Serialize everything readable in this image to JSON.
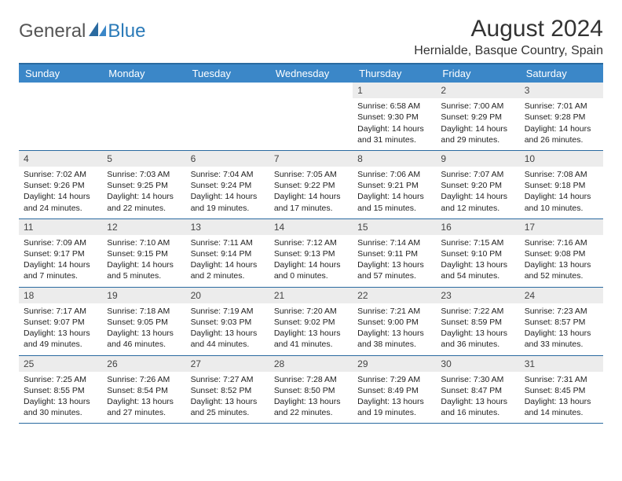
{
  "logo": {
    "text1": "General",
    "text2": "Blue"
  },
  "title": "August 2024",
  "subtitle": "Hernialde, Basque Country, Spain",
  "colors": {
    "header_bg": "#3b87c8",
    "header_text": "#ffffff",
    "border": "#2a6aa0",
    "daynum_bg": "#ececec",
    "logo_gray": "#555555",
    "logo_blue": "#2a7ab8"
  },
  "layout": {
    "columns": 7,
    "rows": 5,
    "cell_fontsize_pt": 8,
    "header_fontsize_pt": 10,
    "title_fontsize_pt": 22
  },
  "day_names": [
    "Sunday",
    "Monday",
    "Tuesday",
    "Wednesday",
    "Thursday",
    "Friday",
    "Saturday"
  ],
  "weeks": [
    [
      {
        "n": "",
        "empty": true
      },
      {
        "n": "",
        "empty": true
      },
      {
        "n": "",
        "empty": true
      },
      {
        "n": "",
        "empty": true
      },
      {
        "n": "1",
        "sr": "Sunrise: 6:58 AM",
        "ss": "Sunset: 9:30 PM",
        "d1": "Daylight: 14 hours",
        "d2": "and 31 minutes."
      },
      {
        "n": "2",
        "sr": "Sunrise: 7:00 AM",
        "ss": "Sunset: 9:29 PM",
        "d1": "Daylight: 14 hours",
        "d2": "and 29 minutes."
      },
      {
        "n": "3",
        "sr": "Sunrise: 7:01 AM",
        "ss": "Sunset: 9:28 PM",
        "d1": "Daylight: 14 hours",
        "d2": "and 26 minutes."
      }
    ],
    [
      {
        "n": "4",
        "sr": "Sunrise: 7:02 AM",
        "ss": "Sunset: 9:26 PM",
        "d1": "Daylight: 14 hours",
        "d2": "and 24 minutes."
      },
      {
        "n": "5",
        "sr": "Sunrise: 7:03 AM",
        "ss": "Sunset: 9:25 PM",
        "d1": "Daylight: 14 hours",
        "d2": "and 22 minutes."
      },
      {
        "n": "6",
        "sr": "Sunrise: 7:04 AM",
        "ss": "Sunset: 9:24 PM",
        "d1": "Daylight: 14 hours",
        "d2": "and 19 minutes."
      },
      {
        "n": "7",
        "sr": "Sunrise: 7:05 AM",
        "ss": "Sunset: 9:22 PM",
        "d1": "Daylight: 14 hours",
        "d2": "and 17 minutes."
      },
      {
        "n": "8",
        "sr": "Sunrise: 7:06 AM",
        "ss": "Sunset: 9:21 PM",
        "d1": "Daylight: 14 hours",
        "d2": "and 15 minutes."
      },
      {
        "n": "9",
        "sr": "Sunrise: 7:07 AM",
        "ss": "Sunset: 9:20 PM",
        "d1": "Daylight: 14 hours",
        "d2": "and 12 minutes."
      },
      {
        "n": "10",
        "sr": "Sunrise: 7:08 AM",
        "ss": "Sunset: 9:18 PM",
        "d1": "Daylight: 14 hours",
        "d2": "and 10 minutes."
      }
    ],
    [
      {
        "n": "11",
        "sr": "Sunrise: 7:09 AM",
        "ss": "Sunset: 9:17 PM",
        "d1": "Daylight: 14 hours",
        "d2": "and 7 minutes."
      },
      {
        "n": "12",
        "sr": "Sunrise: 7:10 AM",
        "ss": "Sunset: 9:15 PM",
        "d1": "Daylight: 14 hours",
        "d2": "and 5 minutes."
      },
      {
        "n": "13",
        "sr": "Sunrise: 7:11 AM",
        "ss": "Sunset: 9:14 PM",
        "d1": "Daylight: 14 hours",
        "d2": "and 2 minutes."
      },
      {
        "n": "14",
        "sr": "Sunrise: 7:12 AM",
        "ss": "Sunset: 9:13 PM",
        "d1": "Daylight: 14 hours",
        "d2": "and 0 minutes."
      },
      {
        "n": "15",
        "sr": "Sunrise: 7:14 AM",
        "ss": "Sunset: 9:11 PM",
        "d1": "Daylight: 13 hours",
        "d2": "and 57 minutes."
      },
      {
        "n": "16",
        "sr": "Sunrise: 7:15 AM",
        "ss": "Sunset: 9:10 PM",
        "d1": "Daylight: 13 hours",
        "d2": "and 54 minutes."
      },
      {
        "n": "17",
        "sr": "Sunrise: 7:16 AM",
        "ss": "Sunset: 9:08 PM",
        "d1": "Daylight: 13 hours",
        "d2": "and 52 minutes."
      }
    ],
    [
      {
        "n": "18",
        "sr": "Sunrise: 7:17 AM",
        "ss": "Sunset: 9:07 PM",
        "d1": "Daylight: 13 hours",
        "d2": "and 49 minutes."
      },
      {
        "n": "19",
        "sr": "Sunrise: 7:18 AM",
        "ss": "Sunset: 9:05 PM",
        "d1": "Daylight: 13 hours",
        "d2": "and 46 minutes."
      },
      {
        "n": "20",
        "sr": "Sunrise: 7:19 AM",
        "ss": "Sunset: 9:03 PM",
        "d1": "Daylight: 13 hours",
        "d2": "and 44 minutes."
      },
      {
        "n": "21",
        "sr": "Sunrise: 7:20 AM",
        "ss": "Sunset: 9:02 PM",
        "d1": "Daylight: 13 hours",
        "d2": "and 41 minutes."
      },
      {
        "n": "22",
        "sr": "Sunrise: 7:21 AM",
        "ss": "Sunset: 9:00 PM",
        "d1": "Daylight: 13 hours",
        "d2": "and 38 minutes."
      },
      {
        "n": "23",
        "sr": "Sunrise: 7:22 AM",
        "ss": "Sunset: 8:59 PM",
        "d1": "Daylight: 13 hours",
        "d2": "and 36 minutes."
      },
      {
        "n": "24",
        "sr": "Sunrise: 7:23 AM",
        "ss": "Sunset: 8:57 PM",
        "d1": "Daylight: 13 hours",
        "d2": "and 33 minutes."
      }
    ],
    [
      {
        "n": "25",
        "sr": "Sunrise: 7:25 AM",
        "ss": "Sunset: 8:55 PM",
        "d1": "Daylight: 13 hours",
        "d2": "and 30 minutes."
      },
      {
        "n": "26",
        "sr": "Sunrise: 7:26 AM",
        "ss": "Sunset: 8:54 PM",
        "d1": "Daylight: 13 hours",
        "d2": "and 27 minutes."
      },
      {
        "n": "27",
        "sr": "Sunrise: 7:27 AM",
        "ss": "Sunset: 8:52 PM",
        "d1": "Daylight: 13 hours",
        "d2": "and 25 minutes."
      },
      {
        "n": "28",
        "sr": "Sunrise: 7:28 AM",
        "ss": "Sunset: 8:50 PM",
        "d1": "Daylight: 13 hours",
        "d2": "and 22 minutes."
      },
      {
        "n": "29",
        "sr": "Sunrise: 7:29 AM",
        "ss": "Sunset: 8:49 PM",
        "d1": "Daylight: 13 hours",
        "d2": "and 19 minutes."
      },
      {
        "n": "30",
        "sr": "Sunrise: 7:30 AM",
        "ss": "Sunset: 8:47 PM",
        "d1": "Daylight: 13 hours",
        "d2": "and 16 minutes."
      },
      {
        "n": "31",
        "sr": "Sunrise: 7:31 AM",
        "ss": "Sunset: 8:45 PM",
        "d1": "Daylight: 13 hours",
        "d2": "and 14 minutes."
      }
    ]
  ]
}
